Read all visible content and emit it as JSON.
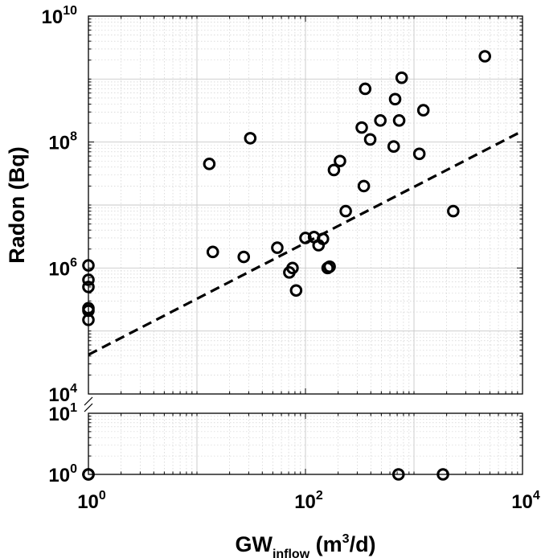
{
  "chart_data": {
    "type": "scatter",
    "title": "",
    "xlabel": {
      "main": "GW",
      "sub": "inflow",
      "rest": " (m",
      "sup": "3",
      "end": "/d)"
    },
    "ylabel": "Radon (Bq)",
    "x_scale": "log",
    "y_scale": "log",
    "xlim": [
      1,
      10000
    ],
    "ylim_main": [
      10000,
      10000000000
    ],
    "ylim_inset": [
      1,
      10
    ],
    "grid": true,
    "x_ticks": [
      {
        "value": 1,
        "base": "10",
        "exp": "0"
      },
      {
        "value": 100,
        "base": "10",
        "exp": "2"
      },
      {
        "value": 10000,
        "base": "10",
        "exp": "4"
      }
    ],
    "y_ticks_main": [
      {
        "value": 10000,
        "base": "10",
        "exp": "4"
      },
      {
        "value": 1000000,
        "base": "10",
        "exp": "6"
      },
      {
        "value": 100000000,
        "base": "10",
        "exp": "8"
      },
      {
        "value": 10000000000,
        "base": "10",
        "exp": "10"
      }
    ],
    "y_ticks_inset": [
      {
        "value": 1,
        "base": "10",
        "exp": "0"
      },
      {
        "value": 10,
        "base": "10",
        "exp": "1"
      }
    ],
    "points": [
      {
        "x": 1,
        "y": 1100000
      },
      {
        "x": 1,
        "y": 650000
      },
      {
        "x": 1,
        "y": 500000
      },
      {
        "x": 1,
        "y": 230000
      },
      {
        "x": 1,
        "y": 210000
      },
      {
        "x": 1,
        "y": 150000
      },
      {
        "x": 13,
        "y": 45000000
      },
      {
        "x": 14,
        "y": 1800000
      },
      {
        "x": 27,
        "y": 1500000
      },
      {
        "x": 31,
        "y": 115000000
      },
      {
        "x": 55,
        "y": 2100000
      },
      {
        "x": 71,
        "y": 850000
      },
      {
        "x": 76,
        "y": 1000000
      },
      {
        "x": 82,
        "y": 440000
      },
      {
        "x": 100,
        "y": 3000000
      },
      {
        "x": 120,
        "y": 3100000
      },
      {
        "x": 132,
        "y": 2300000
      },
      {
        "x": 145,
        "y": 2900000
      },
      {
        "x": 160,
        "y": 1000000
      },
      {
        "x": 167,
        "y": 1050000
      },
      {
        "x": 183,
        "y": 36000000
      },
      {
        "x": 208,
        "y": 50000000
      },
      {
        "x": 235,
        "y": 8000000
      },
      {
        "x": 330,
        "y": 170000000
      },
      {
        "x": 345,
        "y": 20000000
      },
      {
        "x": 355,
        "y": 700000000
      },
      {
        "x": 395,
        "y": 110000000
      },
      {
        "x": 490,
        "y": 220000000
      },
      {
        "x": 650,
        "y": 85000000
      },
      {
        "x": 670,
        "y": 480000000
      },
      {
        "x": 730,
        "y": 220000000
      },
      {
        "x": 770,
        "y": 1050000000
      },
      {
        "x": 1120,
        "y": 65000000
      },
      {
        "x": 1220,
        "y": 320000000
      },
      {
        "x": 2300,
        "y": 8000000
      },
      {
        "x": 4500,
        "y": 2300000000
      }
    ],
    "zero_points": [
      {
        "x": 1,
        "y": 1
      },
      {
        "x": 1,
        "y": 1
      },
      {
        "x": 720,
        "y": 1
      },
      {
        "x": 1850,
        "y": 1
      }
    ],
    "fit_line": [
      {
        "x": 1,
        "y": 42000
      },
      {
        "x": 10000,
        "y": 150000000
      }
    ],
    "colors": {
      "marker": "#000000",
      "fit": "#000000",
      "grid": "#c8c8c8"
    }
  }
}
